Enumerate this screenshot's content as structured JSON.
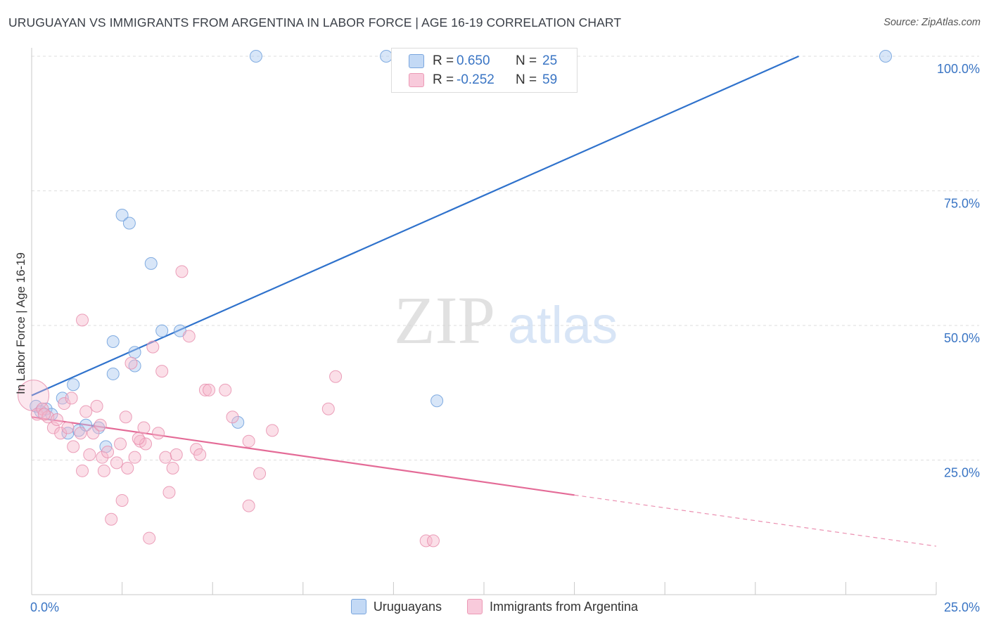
{
  "title": "URUGUAYAN VS IMMIGRANTS FROM ARGENTINA IN LABOR FORCE | AGE 16-19 CORRELATION CHART",
  "source": "Source: ZipAtlas.com",
  "watermark": {
    "zip": "ZIP",
    "atlas": "atlas"
  },
  "legend": {
    "r_label": "R =",
    "n_label": "N =",
    "uruguayans": {
      "r": "0.650",
      "n": "25",
      "color": "#a9c8ef"
    },
    "argentina": {
      "r": "-0.252",
      "n": "59",
      "color": "#f6b9cd"
    }
  },
  "bottom_legend": {
    "uruguayans": "Uruguayans",
    "argentina": "Immigrants from Argentina"
  },
  "chart_data": {
    "type": "scatter",
    "xlabel": "",
    "ylabel": "In Labor Force | Age 16-19",
    "xlim": [
      0,
      25
    ],
    "ylim": [
      0,
      100
    ],
    "x_tick_labels": [
      "0.0%",
      "25.0%"
    ],
    "y_tick_labels": [
      "100.0%",
      "75.0%",
      "50.0%",
      "25.0%"
    ],
    "y_ticks": [
      100,
      75,
      50,
      25
    ],
    "grid": true,
    "legend_position": "top-center",
    "series": [
      {
        "name": "Uruguayans",
        "color": "#a9c8ef",
        "stroke": "#6d9fdc",
        "trend": {
          "x": [
            0,
            21.2
          ],
          "y": [
            37.0,
            100.0
          ],
          "color": "#2f72cc"
        },
        "points": [
          [
            0.12,
            35.0
          ],
          [
            0.4,
            34.5
          ],
          [
            0.55,
            33.5
          ],
          [
            0.85,
            36.5
          ],
          [
            1.0,
            30.0
          ],
          [
            1.15,
            39.0
          ],
          [
            1.3,
            30.5
          ],
          [
            1.5,
            31.5
          ],
          [
            1.85,
            31.0
          ],
          [
            2.05,
            27.5
          ],
          [
            2.25,
            47.0
          ],
          [
            2.25,
            41.0
          ],
          [
            2.5,
            70.5
          ],
          [
            2.7,
            69.0
          ],
          [
            2.85,
            45.0
          ],
          [
            2.85,
            42.5
          ],
          [
            3.3,
            61.5
          ],
          [
            3.6,
            49.0
          ],
          [
            4.1,
            49.0
          ],
          [
            5.7,
            32.0
          ],
          [
            6.2,
            100.0
          ],
          [
            9.8,
            100.0
          ],
          [
            11.2,
            36.0
          ],
          [
            23.6,
            100.0
          ],
          [
            0.25,
            34.0
          ]
        ]
      },
      {
        "name": "Immigrants from Argentina",
        "color": "#f6b9cd",
        "stroke": "#e88fae",
        "trend": {
          "x": [
            0,
            15.0
          ],
          "y": [
            33.0,
            18.5
          ],
          "color": "#e46b97",
          "dash_to": [
            25.0,
            9.0
          ]
        },
        "points": [
          [
            0.05,
            37.0
          ],
          [
            0.15,
            33.5
          ],
          [
            0.3,
            34.5
          ],
          [
            0.45,
            33.0
          ],
          [
            0.6,
            31.0
          ],
          [
            0.7,
            32.5
          ],
          [
            0.8,
            30.0
          ],
          [
            0.9,
            35.5
          ],
          [
            1.0,
            31.0
          ],
          [
            1.1,
            36.5
          ],
          [
            1.15,
            27.5
          ],
          [
            1.35,
            30.0
          ],
          [
            1.4,
            23.0
          ],
          [
            1.4,
            51.0
          ],
          [
            1.5,
            34.0
          ],
          [
            1.6,
            26.0
          ],
          [
            1.7,
            30.0
          ],
          [
            1.8,
            35.0
          ],
          [
            1.9,
            31.5
          ],
          [
            1.95,
            25.5
          ],
          [
            2.0,
            23.0
          ],
          [
            2.1,
            26.5
          ],
          [
            2.2,
            14.0
          ],
          [
            2.35,
            24.5
          ],
          [
            2.45,
            28.0
          ],
          [
            2.5,
            17.5
          ],
          [
            2.6,
            33.0
          ],
          [
            2.65,
            23.5
          ],
          [
            2.75,
            43.0
          ],
          [
            2.85,
            25.5
          ],
          [
            3.0,
            28.5
          ],
          [
            3.1,
            31.0
          ],
          [
            3.15,
            28.0
          ],
          [
            3.25,
            10.5
          ],
          [
            3.35,
            46.0
          ],
          [
            3.5,
            30.0
          ],
          [
            3.6,
            41.5
          ],
          [
            3.7,
            25.5
          ],
          [
            3.8,
            19.0
          ],
          [
            3.9,
            23.5
          ],
          [
            4.0,
            26.0
          ],
          [
            4.15,
            60.0
          ],
          [
            4.35,
            48.0
          ],
          [
            4.55,
            27.0
          ],
          [
            4.65,
            26.0
          ],
          [
            4.8,
            38.0
          ],
          [
            4.9,
            38.0
          ],
          [
            5.35,
            38.0
          ],
          [
            5.55,
            33.0
          ],
          [
            6.0,
            28.5
          ],
          [
            6.0,
            16.5
          ],
          [
            6.3,
            22.5
          ],
          [
            6.65,
            30.5
          ],
          [
            8.2,
            34.5
          ],
          [
            8.4,
            40.5
          ],
          [
            10.9,
            10.0
          ],
          [
            11.1,
            10.0
          ],
          [
            0.35,
            33.5
          ],
          [
            2.95,
            29.0
          ]
        ]
      }
    ]
  }
}
